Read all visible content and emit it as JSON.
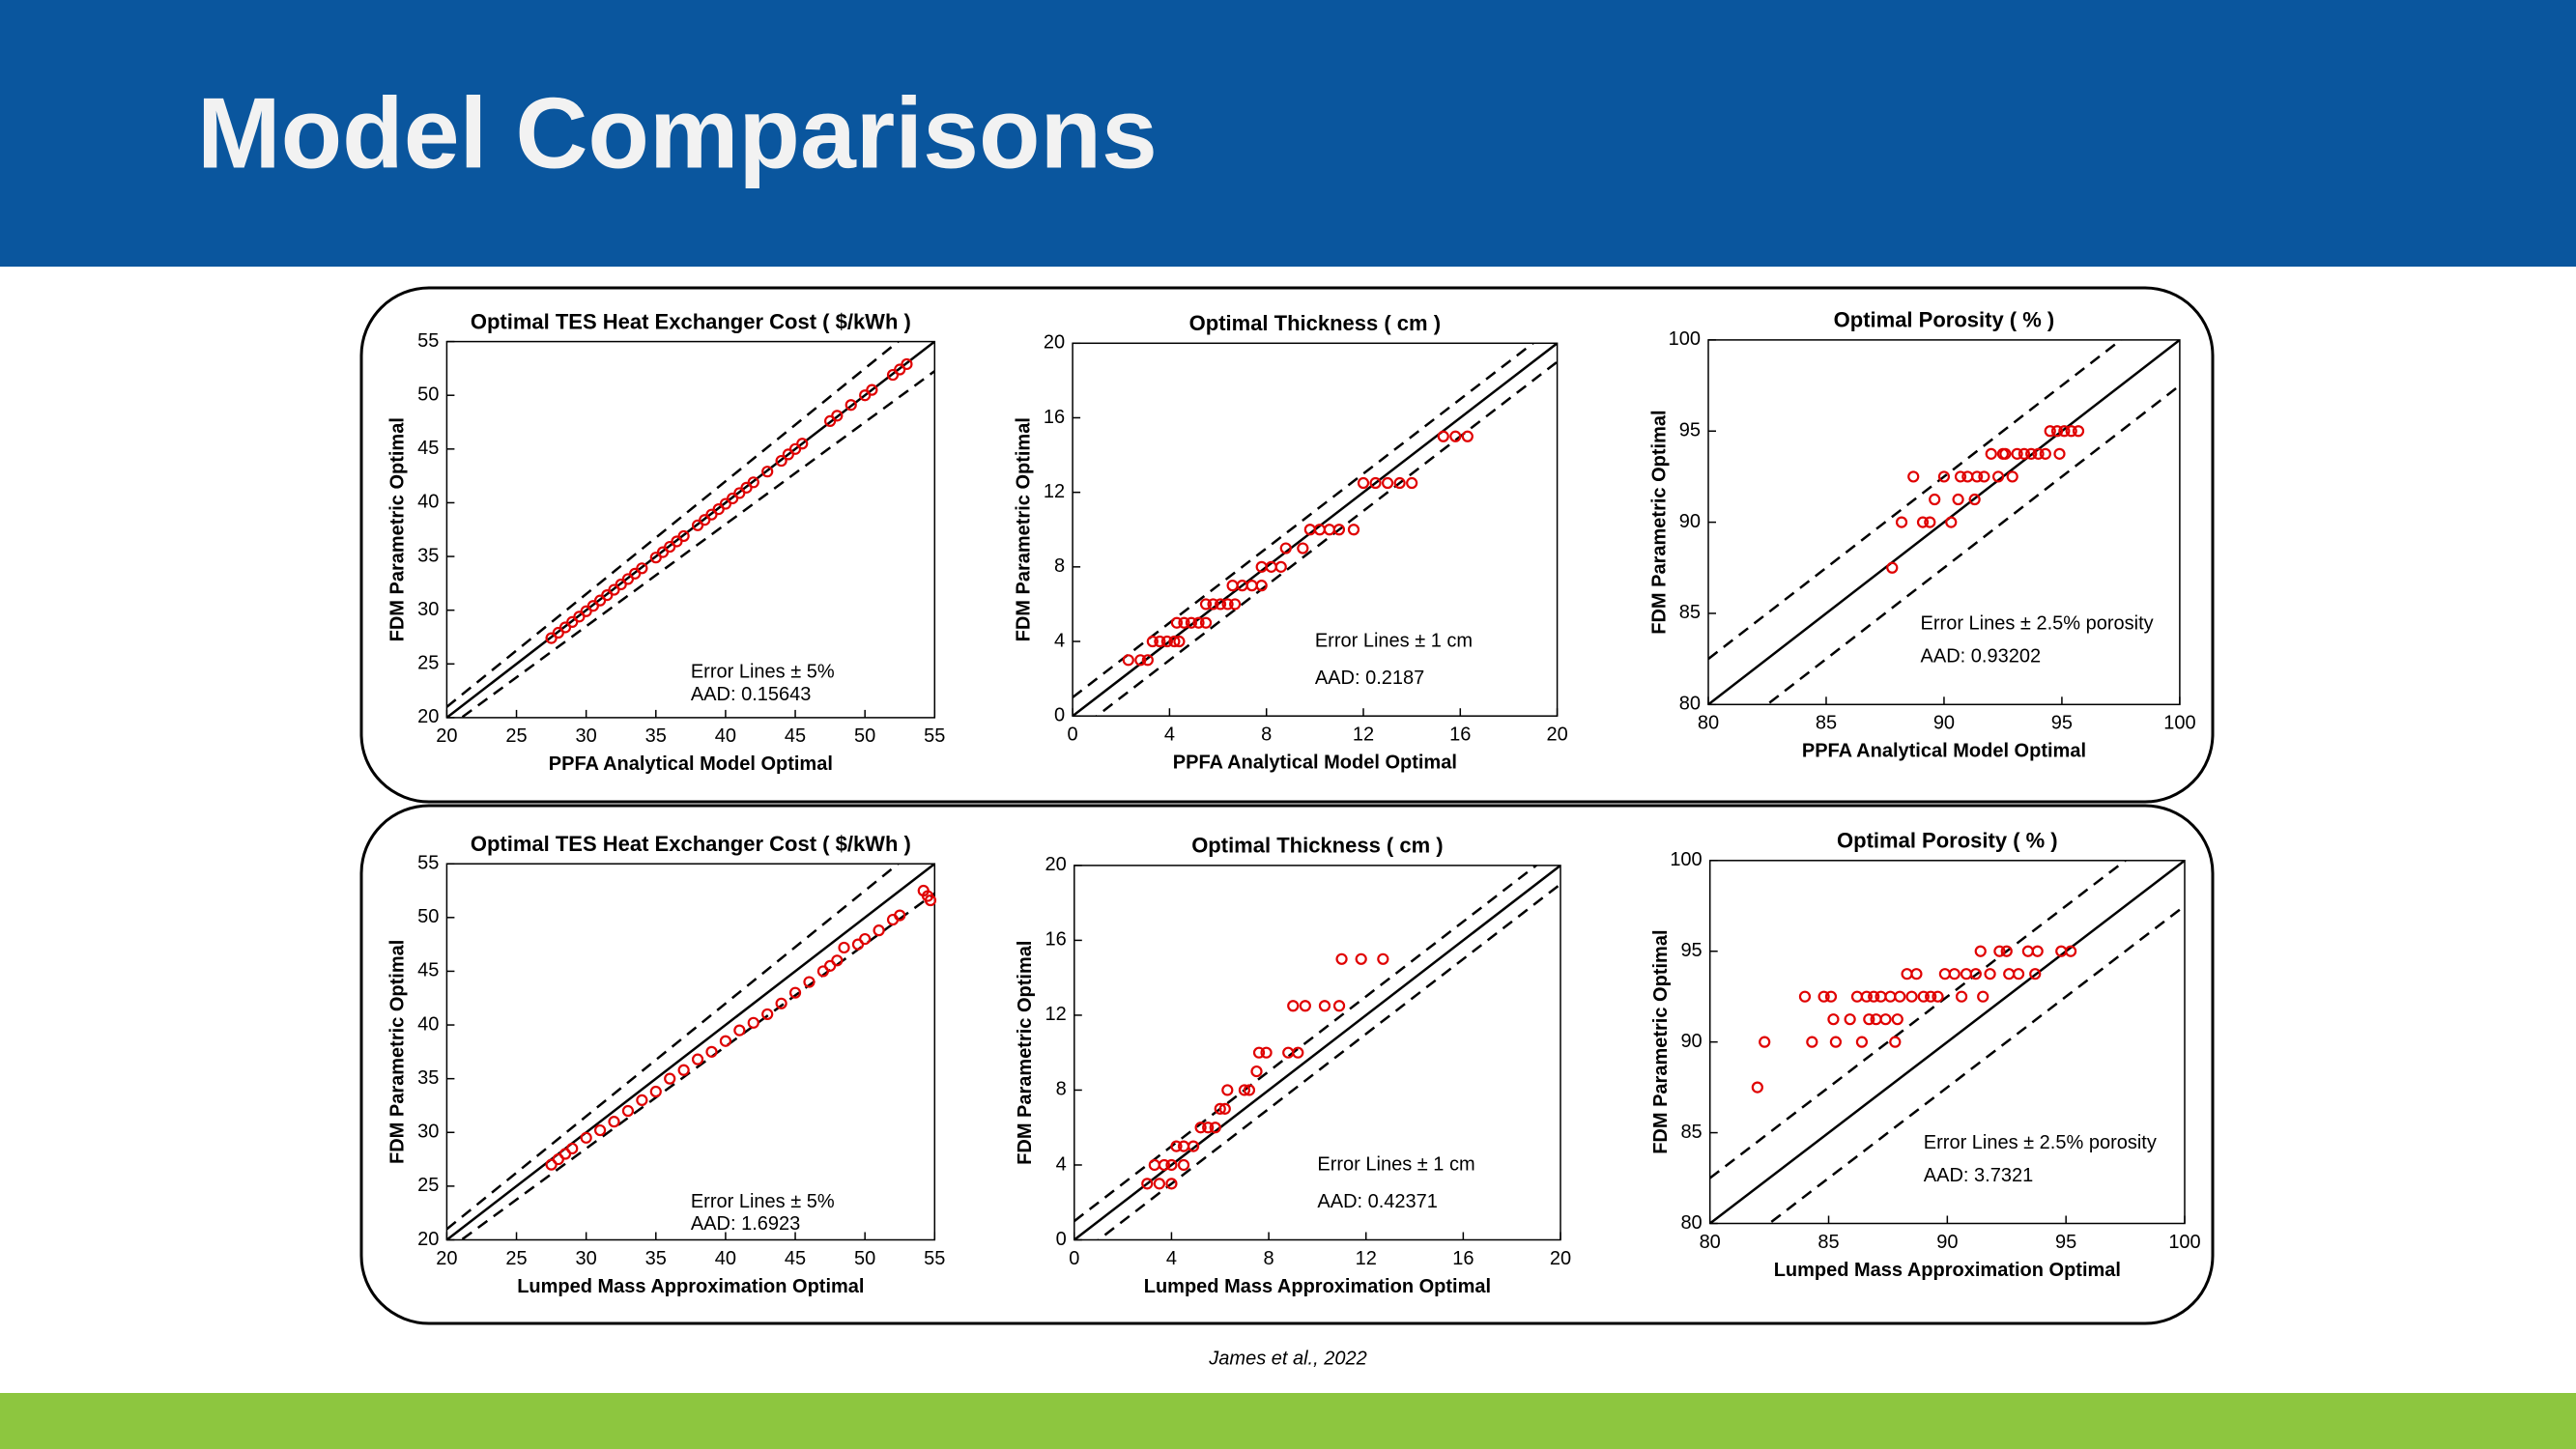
{
  "header": {
    "title": "Model Comparisons"
  },
  "footer": {
    "citation": "James et al., 2022"
  },
  "chart_data": [
    {
      "type": "scatter",
      "title": "Optimal TES Heat Exchanger Cost ( $/kWh )",
      "x_label": "PPFA Analytical Model Optimal",
      "y_label": "FDM Parametric Optimal",
      "annotations": [
        "Error Lines ± 5%",
        "AAD: 0.15643"
      ],
      "error_lines": {
        "value": 5,
        "mode": "relative"
      },
      "xlim": [
        20,
        55
      ],
      "ylim": [
        20,
        55
      ],
      "xticks": [
        20,
        25,
        30,
        35,
        40,
        45,
        50,
        55
      ],
      "yticks": [
        20,
        25,
        30,
        35,
        40,
        45,
        50,
        55
      ],
      "series": [
        {
          "color": "#e00000",
          "x": [
            27.5,
            28,
            28.5,
            29,
            29.5,
            30,
            30.5,
            31,
            31.5,
            32,
            32.5,
            33,
            33.5,
            34,
            35,
            35.5,
            36,
            36.5,
            37,
            38,
            38.5,
            39,
            39.5,
            40,
            40.5,
            41,
            41.5,
            42,
            43,
            44,
            44.5,
            45,
            45.5,
            47.5,
            48,
            49,
            50,
            50.5,
            52,
            52.5,
            53
          ],
          "y": [
            27.4,
            27.9,
            28.4,
            28.9,
            29.4,
            29.9,
            30.4,
            30.9,
            31.4,
            31.9,
            32.4,
            32.9,
            33.4,
            33.9,
            34.9,
            35.4,
            35.9,
            36.4,
            36.9,
            37.9,
            38.4,
            38.9,
            39.4,
            39.9,
            40.4,
            40.9,
            41.4,
            41.9,
            42.9,
            43.9,
            44.5,
            45,
            45.5,
            47.6,
            48.1,
            49.1,
            50,
            50.5,
            51.9,
            52.4,
            52.9
          ]
        }
      ]
    },
    {
      "type": "scatter",
      "title": "Optimal Thickness ( cm )",
      "x_label": "PPFA Analytical Model Optimal",
      "y_label": "FDM Parametric Optimal",
      "annotations": [
        "Error Lines ± 1 cm",
        "AAD: 0.2187"
      ],
      "error_lines": {
        "value": 1,
        "mode": "absolute"
      },
      "xlim": [
        0,
        20
      ],
      "ylim": [
        0,
        20
      ],
      "xticks": [
        0,
        4,
        8,
        12,
        16,
        20
      ],
      "yticks": [
        0,
        4,
        8,
        12,
        16,
        20
      ],
      "series": [
        {
          "color": "#e00000",
          "x": [
            2.3,
            2.8,
            3.1,
            3.3,
            3.6,
            3.9,
            4.2,
            4.4,
            4.3,
            4.6,
            4.9,
            5.2,
            5.5,
            5.5,
            5.8,
            6.1,
            6.4,
            6.7,
            6.6,
            7,
            7.4,
            7.8,
            7.8,
            8.2,
            8.6,
            8.8,
            9.5,
            9.8,
            10.2,
            10.6,
            11,
            11.6,
            12,
            12.5,
            13,
            13.5,
            14,
            15.3,
            15.8,
            16.3
          ],
          "y": [
            3,
            3,
            3,
            4,
            4,
            4,
            4,
            4,
            5,
            5,
            5,
            5,
            5,
            6,
            6,
            6,
            6,
            6,
            7,
            7,
            7,
            7,
            8,
            8,
            8,
            9,
            9,
            10,
            10,
            10,
            10,
            10,
            12.5,
            12.5,
            12.5,
            12.5,
            12.5,
            15,
            15,
            15
          ]
        }
      ]
    },
    {
      "type": "scatter",
      "title": "Optimal Porosity ( % )",
      "x_label": "PPFA Analytical Model Optimal",
      "y_label": "FDM Parametric Optimal",
      "annotations": [
        "Error Lines ± 2.5% porosity",
        "AAD: 0.93202"
      ],
      "error_lines": {
        "value": 2.5,
        "mode": "absolute"
      },
      "xlim": [
        80,
        100
      ],
      "ylim": [
        80,
        100
      ],
      "xticks": [
        80,
        85,
        90,
        95,
        100
      ],
      "yticks": [
        80,
        85,
        90,
        95,
        100
      ],
      "series": [
        {
          "color": "#e00000",
          "x": [
            87.8,
            88.2,
            88.7,
            89.1,
            89.4,
            89.6,
            90,
            90.3,
            90.6,
            90.7,
            91,
            91.3,
            91.4,
            91.7,
            92,
            92.3,
            92.5,
            92.6,
            92.9,
            93.1,
            93.4,
            93.7,
            94,
            94.3,
            94.5,
            94.8,
            94.9,
            95.1,
            95.4,
            95.7
          ],
          "y": [
            87.5,
            90,
            92.5,
            90,
            90,
            91.25,
            92.5,
            90,
            91.25,
            92.5,
            92.5,
            91.25,
            92.5,
            92.5,
            93.75,
            92.5,
            93.75,
            93.75,
            92.5,
            93.75,
            93.75,
            93.75,
            93.75,
            93.75,
            95,
            95,
            93.75,
            95,
            95,
            95
          ]
        }
      ]
    },
    {
      "type": "scatter",
      "title": "Optimal TES Heat Exchanger Cost ( $/kWh )",
      "x_label": "Lumped Mass Approximation Optimal",
      "y_label": "FDM Parametric Optimal",
      "annotations": [
        "Error Lines ± 5%",
        "AAD: 1.6923"
      ],
      "error_lines": {
        "value": 5,
        "mode": "relative"
      },
      "xlim": [
        20,
        55
      ],
      "ylim": [
        20,
        55
      ],
      "xticks": [
        20,
        25,
        30,
        35,
        40,
        45,
        50,
        55
      ],
      "yticks": [
        20,
        25,
        30,
        35,
        40,
        45,
        50,
        55
      ],
      "series": [
        {
          "color": "#e00000",
          "x": [
            27.5,
            28,
            28.5,
            29,
            30,
            31,
            32,
            33,
            34,
            35,
            36,
            37,
            38,
            39,
            40,
            41,
            42,
            43,
            44,
            45,
            46,
            47,
            47.5,
            48,
            48.5,
            49.5,
            50,
            51,
            52,
            52.5,
            54.2,
            54.5,
            54.7
          ],
          "y": [
            27,
            27.5,
            28,
            28.5,
            29.5,
            30.2,
            31,
            32,
            33,
            33.8,
            35,
            35.8,
            36.8,
            37.5,
            38.5,
            39.5,
            40.2,
            41,
            42,
            43,
            44,
            45,
            45.5,
            46,
            47.2,
            47.5,
            48,
            48.8,
            49.8,
            50.2,
            52.5,
            52,
            51.6
          ]
        }
      ]
    },
    {
      "type": "scatter",
      "title": "Optimal Thickness ( cm )",
      "x_label": "Lumped Mass Approximation Optimal",
      "y_label": "FDM Parametric Optimal",
      "annotations": [
        "Error Lines ± 1 cm",
        "AAD: 0.42371"
      ],
      "error_lines": {
        "value": 1,
        "mode": "absolute"
      },
      "xlim": [
        0,
        20
      ],
      "ylim": [
        0,
        20
      ],
      "xticks": [
        0,
        4,
        8,
        12,
        16,
        20
      ],
      "yticks": [
        0,
        4,
        8,
        12,
        16,
        20
      ],
      "series": [
        {
          "color": "#e00000",
          "x": [
            3,
            3.3,
            3.5,
            3.7,
            4,
            4,
            4.2,
            4.5,
            4.5,
            4.9,
            5.2,
            5.5,
            5.8,
            6,
            6.3,
            6.2,
            7,
            7.2,
            7.5,
            7.6,
            7.9,
            8.8,
            9.2,
            9,
            9.5,
            10.3,
            10.9,
            11,
            11.8,
            12.7
          ],
          "y": [
            3,
            4,
            3,
            4,
            3,
            4,
            5,
            4,
            5,
            5,
            6,
            6,
            6,
            7,
            8,
            7,
            8,
            8,
            9,
            10,
            10,
            10,
            10,
            12.5,
            12.5,
            12.5,
            12.5,
            15,
            15,
            15
          ]
        }
      ]
    },
    {
      "type": "scatter",
      "title": "Optimal Porosity ( % )",
      "x_label": "Lumped Mass Approximation Optimal",
      "y_label": "FDM Parametric Optimal",
      "annotations": [
        "Error Lines ± 2.5% porosity",
        "AAD: 3.7321"
      ],
      "error_lines": {
        "value": 2.5,
        "mode": "absolute"
      },
      "xlim": [
        80,
        100
      ],
      "ylim": [
        80,
        100
      ],
      "xticks": [
        80,
        85,
        90,
        95,
        100
      ],
      "yticks": [
        80,
        85,
        90,
        95,
        100
      ],
      "series": [
        {
          "color": "#e00000",
          "x": [
            82,
            82.3,
            84,
            84.3,
            84.8,
            85.1,
            85.2,
            85.3,
            85.9,
            86.2,
            86.4,
            86.6,
            86.7,
            86.9,
            87,
            87.2,
            87.4,
            87.6,
            87.8,
            87.9,
            88,
            88.3,
            88.5,
            88.7,
            89,
            89.3,
            89.6,
            89.9,
            90.3,
            90.6,
            90.8,
            91.2,
            91.4,
            91.5,
            91.8,
            92.2,
            92.5,
            92.6,
            93,
            93.4,
            93.7,
            93.8,
            94.8,
            95.2
          ],
          "y": [
            87.5,
            90,
            92.5,
            90,
            92.5,
            92.5,
            91.25,
            90,
            91.25,
            92.5,
            90,
            92.5,
            91.25,
            92.5,
            91.25,
            92.5,
            91.25,
            92.5,
            90,
            91.25,
            92.5,
            93.75,
            92.5,
            93.75,
            92.5,
            92.5,
            92.5,
            93.75,
            93.75,
            92.5,
            93.75,
            93.75,
            95,
            92.5,
            93.75,
            95,
            95,
            93.75,
            93.75,
            95,
            93.75,
            95,
            95,
            95
          ]
        }
      ]
    }
  ]
}
